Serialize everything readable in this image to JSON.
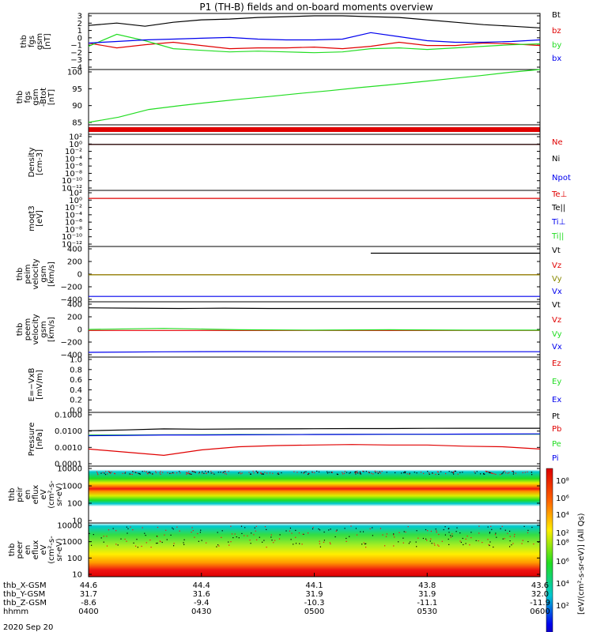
{
  "title": "P1 (TH-B) fields and on-board moments overview",
  "date_label": "2020 Sep 20",
  "colorbar_label": "[eV/(cm²-s-sr-eV)] (All Qs)",
  "colorbar_ticks": [
    "10⁸",
    "10⁶",
    "10⁴",
    "10²"
  ],
  "colors": {
    "black": "#000000",
    "red": "#e00000",
    "green": "#22dd22",
    "blue": "#0000ee",
    "olive": "#888800"
  },
  "time_axis": {
    "labels": [
      "0400",
      "0430",
      "0500",
      "0530",
      "0600"
    ],
    "rows": [
      {
        "name": "thb_X-GSM",
        "values": [
          "44.6",
          "44.4",
          "44.1",
          "43.8",
          "43.6"
        ]
      },
      {
        "name": "thb_Y-GSM",
        "values": [
          "31.7",
          "31.6",
          "31.9",
          "31.9",
          "32.0"
        ]
      },
      {
        "name": "thb_Z-GSM",
        "values": [
          "-8.6",
          "-9.4",
          "-10.3",
          "-11.1",
          "-11.9"
        ]
      },
      {
        "name": "hhmm",
        "values": [
          "0400",
          "0430",
          "0500",
          "0530",
          "0600"
        ]
      }
    ]
  },
  "chart_data": [
    {
      "type": "line",
      "ylabel": [
        "thb",
        "fgs",
        "gsm",
        "[nT]"
      ],
      "ylim": [
        -4,
        3
      ],
      "yticks": [
        "3",
        "2",
        "1",
        "0",
        "−1",
        "−2",
        "−3",
        "−4"
      ],
      "series": [
        {
          "name": "Bt",
          "color": "#000000",
          "values": [
            1.5,
            1.8,
            1.4,
            1.9,
            2.2,
            2.3,
            2.5,
            2.6,
            2.7,
            2.7,
            2.6,
            2.5,
            2.2,
            1.9,
            1.6,
            1.4,
            1.2
          ]
        },
        {
          "name": "bz",
          "color": "#e00000",
          "values": [
            -0.7,
            -1.3,
            -0.9,
            -0.6,
            -1.0,
            -1.4,
            -1.3,
            -1.3,
            -1.2,
            -1.4,
            -1.1,
            -0.6,
            -1.0,
            -1.0,
            -0.7,
            -0.8,
            -1.0
          ]
        },
        {
          "name": "by",
          "color": "#22dd22",
          "values": [
            -1.1,
            0.4,
            -0.4,
            -1.4,
            -1.6,
            -1.8,
            -1.7,
            -1.8,
            -1.9,
            -1.8,
            -1.4,
            -1.3,
            -1.5,
            -1.3,
            -1.1,
            -0.9,
            -0.8
          ]
        },
        {
          "name": "bx",
          "color": "#0000ee",
          "values": [
            -0.7,
            -0.5,
            -0.3,
            -0.2,
            -0.1,
            0.0,
            -0.2,
            -0.3,
            -0.3,
            -0.2,
            0.6,
            0.1,
            -0.4,
            -0.6,
            -0.6,
            -0.5,
            -0.3
          ]
        }
      ]
    },
    {
      "type": "line",
      "ylabel": [
        "thb",
        "fgs",
        "gsm",
        "-Btot",
        "[nT]"
      ],
      "ylim": [
        82,
        100
      ],
      "yticks": [
        "100",
        "95",
        "90",
        "85"
      ],
      "series": [
        {
          "name": "",
          "color": "#22dd22",
          "values": [
            82.8,
            84.5,
            87.0,
            88.2,
            89.3,
            90.3,
            91.2,
            92.2,
            93.1,
            94.1,
            95.0,
            96.0,
            97.0,
            98.0,
            99.1,
            100.0
          ]
        }
      ]
    },
    {
      "type": "line",
      "ylabel": [],
      "ylim": [
        0,
        1
      ],
      "yticks": [],
      "series": [
        {
          "name": "",
          "color": "#e00000",
          "values": [
            0.5,
            0.5
          ]
        }
      ]
    },
    {
      "type": "line",
      "ylabel": [
        "Density",
        "[cm-3]"
      ],
      "yscale": "log",
      "ylim": [
        1e-12,
        100
      ],
      "yticks": [
        "10²",
        "10⁰",
        "10⁻²",
        "10⁻⁴",
        "10⁻⁶",
        "10⁻⁸",
        "10⁻¹⁰",
        "10⁻¹²"
      ],
      "series": [
        {
          "name": "Ne",
          "color": "#e00000",
          "values": [
            0.3,
            0.3
          ]
        },
        {
          "name": "Ni",
          "color": "#000000",
          "values": [
            0.3,
            0.3
          ]
        },
        {
          "name": "Npot",
          "color": "#0000ee",
          "values": []
        }
      ]
    },
    {
      "type": "line",
      "ylabel": [
        "moqt3",
        "[eV]"
      ],
      "yscale": "log",
      "ylim": [
        1e-12,
        100
      ],
      "yticks": [
        "10²",
        "10⁰",
        "10⁻²",
        "10⁻⁴",
        "10⁻⁶",
        "10⁻⁸",
        "10⁻¹⁰",
        "10⁻¹²"
      ],
      "series": [
        {
          "name": "Te⊥",
          "color": "#e00000",
          "values": [
            1.0,
            1.0
          ]
        },
        {
          "name": "Te||",
          "color": "#000000",
          "values": []
        },
        {
          "name": "Ti⊥",
          "color": "#0000ee",
          "values": []
        },
        {
          "name": "Ti||",
          "color": "#22dd22",
          "values": []
        }
      ]
    },
    {
      "type": "line",
      "ylabel": [
        "thb",
        "peim",
        "velocity",
        "gsm",
        "[km/s]"
      ],
      "ylim": [
        -400,
        420
      ],
      "yticks": [
        "400",
        "200",
        "0",
        "−200",
        "−400"
      ],
      "series": [
        {
          "name": "Vt",
          "color": "#000000",
          "values": [
            null,
            null,
            null,
            null,
            null,
            null,
            null,
            null,
            null,
            null,
            320,
            320,
            320,
            320,
            320,
            320,
            320
          ]
        },
        {
          "name": "Vz",
          "color": "#e00000",
          "values": [
            0,
            0
          ]
        },
        {
          "name": "Vy",
          "color": "#888800",
          "values": [
            0,
            0
          ]
        },
        {
          "name": "Vx",
          "color": "#0000ee",
          "values": [
            -320,
            -320
          ]
        }
      ]
    },
    {
      "type": "line",
      "ylabel": [
        "thb",
        "peem",
        "velocity",
        "gsm",
        "[km/s]"
      ],
      "ylim": [
        -400,
        420
      ],
      "yticks": [
        "400",
        "200",
        "0",
        "−200",
        "−400"
      ],
      "series": [
        {
          "name": "Vt",
          "color": "#000000",
          "values": [
            330,
            325,
            320,
            325,
            320,
            320,
            320,
            320,
            320,
            320,
            320
          ]
        },
        {
          "name": "Vz",
          "color": "#e00000",
          "values": [
            -5,
            -5
          ]
        },
        {
          "name": "Vy",
          "color": "#22dd22",
          "values": [
            10,
            25,
            5,
            0,
            5,
            0,
            0
          ]
        },
        {
          "name": "Vx",
          "color": "#0000ee",
          "values": [
            -330,
            -322,
            -318,
            -320,
            -320,
            -320,
            -320
          ]
        }
      ]
    },
    {
      "type": "line",
      "ylabel": [
        "E=−VxB",
        "[mV/m]"
      ],
      "ylim": [
        0,
        1
      ],
      "yticks": [
        "1.0",
        "0.8",
        "0.6",
        "0.4",
        "0.2",
        "0.0"
      ],
      "series": [
        {
          "name": "Ez",
          "color": "#e00000",
          "values": []
        },
        {
          "name": "Ey",
          "color": "#22dd22",
          "values": []
        },
        {
          "name": "Ex",
          "color": "#0000ee",
          "values": []
        }
      ]
    },
    {
      "type": "line",
      "ylabel": [
        "Pressure",
        "[nPa]"
      ],
      "yscale": "log",
      "ylim": [
        0.0001,
        0.1
      ],
      "yticks": [
        "0.1000",
        "0.0100",
        "0.0010",
        "0.0001"
      ],
      "series": [
        {
          "name": "Pt",
          "color": "#000000",
          "values": [
            0.0095,
            0.0105,
            0.012,
            0.0115,
            0.0118,
            0.012,
            0.0122,
            0.0125,
            0.0125,
            0.0128,
            0.013,
            0.013,
            0.013
          ]
        },
        {
          "name": "Pb",
          "color": "#e00000",
          "values": [
            0.0009,
            0.0006,
            0.0004,
            0.0008,
            0.0012,
            0.0014,
            0.0015,
            0.0016,
            0.0015,
            0.0015,
            0.0013,
            0.0012,
            0.0009
          ]
        },
        {
          "name": "Pe",
          "color": "#22dd22",
          "values": [
            0.0055,
            0.0055,
            0.0056,
            0.0057,
            0.0058,
            0.0058,
            0.0059,
            0.006,
            0.006,
            0.006,
            0.006,
            0.006,
            0.006
          ]
        },
        {
          "name": "Pi",
          "color": "#0000ee",
          "values": [
            0.005,
            0.0052,
            0.0055,
            0.0055,
            0.0056,
            0.0057,
            0.0058,
            0.0059,
            0.006,
            0.006,
            0.0061,
            0.0062,
            0.0063
          ]
        }
      ]
    },
    {
      "type": "heatmap",
      "ylabel": [
        "thb",
        "peir",
        "en",
        "eflux",
        "eV",
        "(cm²-s-",
        "sr-eV)"
      ],
      "yscale": "log",
      "ylim": [
        5,
        20000
      ],
      "yticks": [
        "10000",
        "1000",
        "100",
        "10"
      ]
    },
    {
      "type": "heatmap",
      "ylabel": [
        "thb",
        "peer",
        "en",
        "eflux",
        "eV",
        "(cm²-s-",
        "sr-eV)"
      ],
      "yscale": "log",
      "ylim": [
        5,
        20000
      ],
      "yticks": [
        "10000",
        "1000",
        "100",
        "10"
      ]
    }
  ]
}
